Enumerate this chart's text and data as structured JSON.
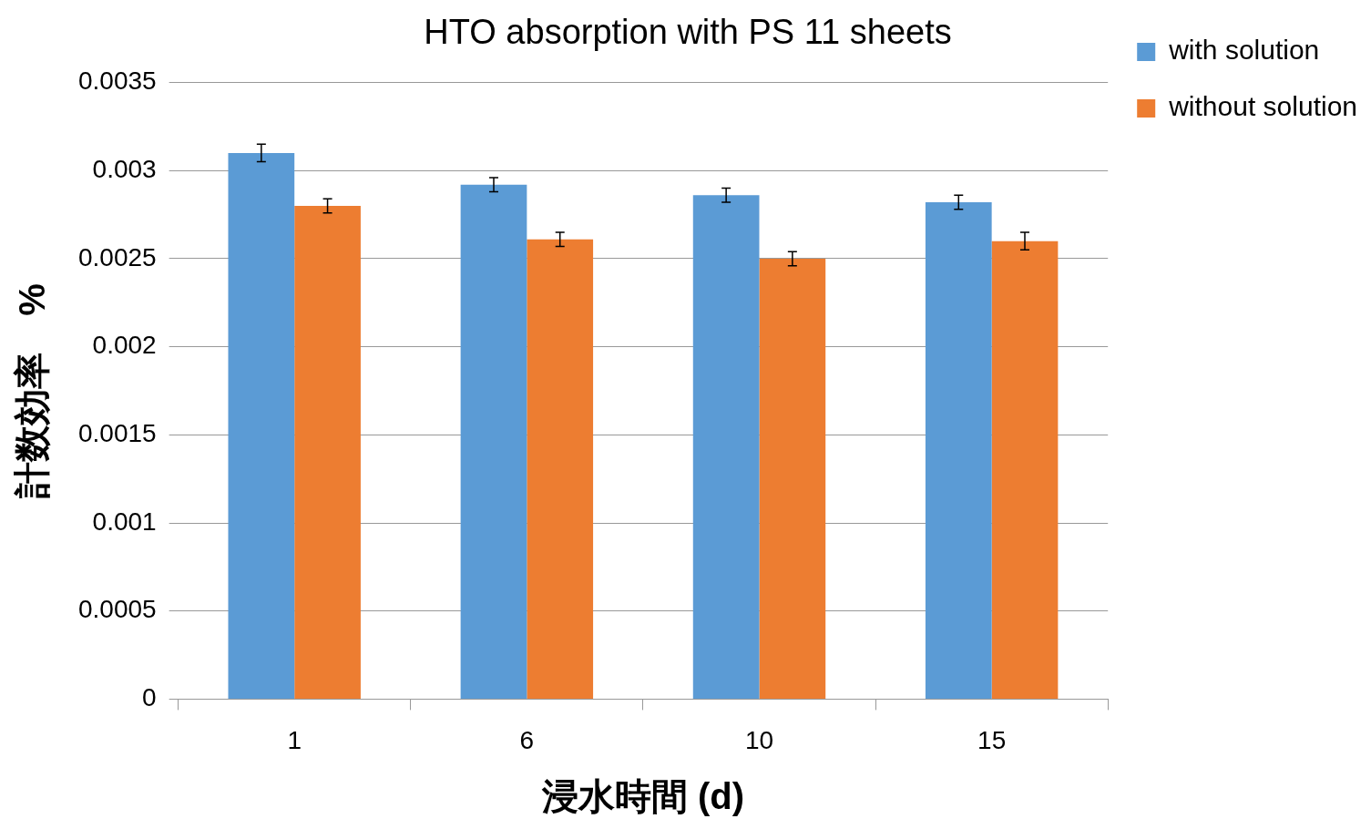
{
  "chart_data": {
    "type": "bar",
    "title": "HTO absorption with PS 11 sheets",
    "xlabel": "浸水時間 (d)",
    "ylabel": "計数効率　%",
    "categories": [
      "1",
      "6",
      "10",
      "15"
    ],
    "series": [
      {
        "name": "with solution",
        "color": "#5b9bd5",
        "values": [
          0.0031,
          0.00292,
          0.00286,
          0.00282
        ],
        "errors": [
          5e-05,
          4e-05,
          4e-05,
          4e-05
        ]
      },
      {
        "name": "without solution",
        "color": "#ed7d31",
        "values": [
          0.0028,
          0.00261,
          0.0025,
          0.0026
        ],
        "errors": [
          4e-05,
          4e-05,
          4e-05,
          5e-05
        ]
      }
    ],
    "ylim": [
      0,
      0.0035
    ],
    "yticks": [
      0,
      0.0005,
      0.001,
      0.0015,
      0.002,
      0.0025,
      0.003,
      0.0035
    ],
    "grid": "y",
    "legend": "top right"
  }
}
